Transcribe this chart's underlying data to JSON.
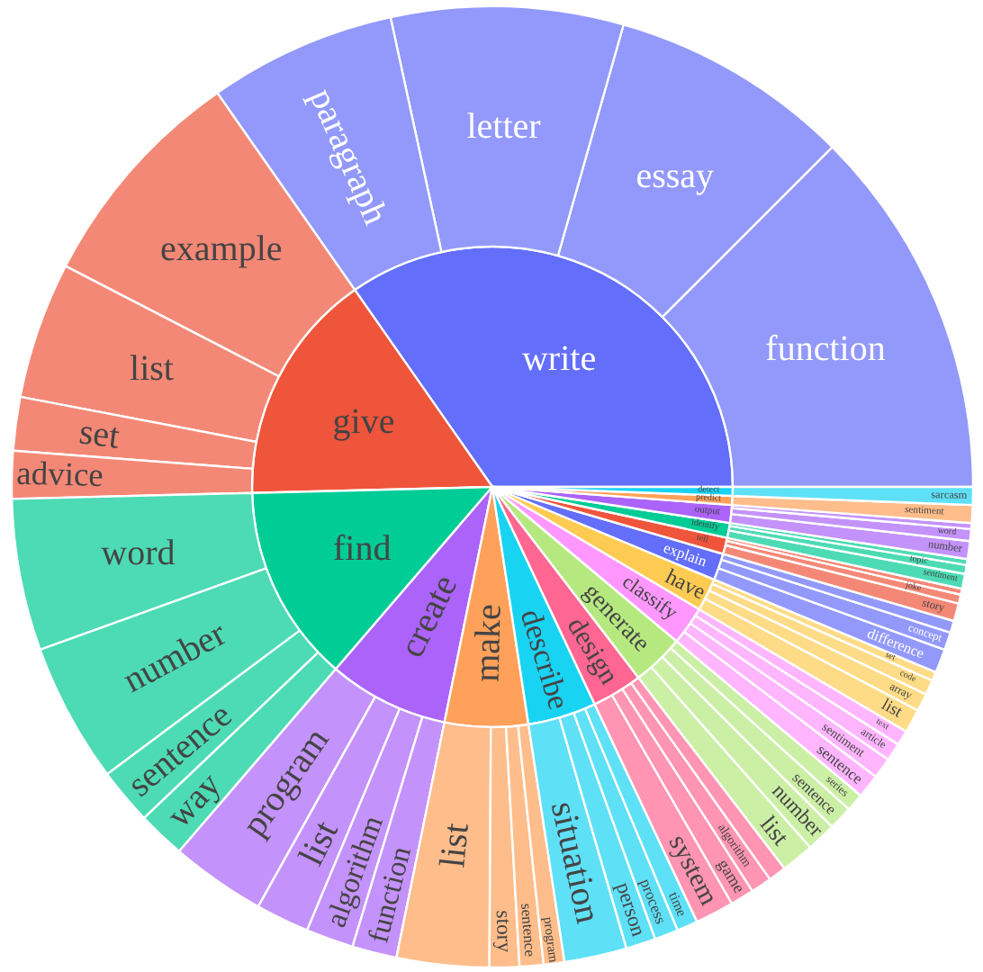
{
  "chart_data": [
    {
      "type": "pie",
      "categories": [
        "write",
        "give",
        "find",
        "create",
        "make",
        "describe",
        "design",
        "generate",
        "classify",
        "have",
        "explain",
        "tell",
        "identify",
        "output",
        "predict",
        "detect"
      ],
      "values": [
        34.7,
        15.7,
        13.3,
        8.1,
        5.6,
        4.6,
        3.4,
        3.5,
        2.6,
        2.2,
        1.8,
        1.1,
        1.0,
        1.2,
        0.6,
        0.6
      ],
      "colors": [
        "#636efa",
        "#ef553b",
        "#00cc96",
        "#ab63fa",
        "#ffa15a",
        "#19d3f3",
        "#ff6692",
        "#b6e880",
        "#ff97ff",
        "#fecb52",
        "#636efa",
        "#ef553b",
        "#00cc96",
        "#ab63fa",
        "#ffa15a",
        "#19d3f3"
      ]
    },
    {
      "type": "donut",
      "categories": [
        "function",
        "essay",
        "letter",
        "paragraph",
        "example",
        "list",
        "set",
        "advice",
        "word",
        "number",
        "sentence",
        "way",
        "program",
        "list",
        "algorithm",
        "function",
        "list",
        "story",
        "sentence",
        "program",
        "situation",
        "person",
        "process",
        "time",
        "system",
        "game",
        "algorithm",
        null,
        "list",
        "number",
        "sentence",
        "series",
        "sentence",
        "sentiment",
        "article",
        "text",
        "list",
        "array",
        "code",
        "set",
        "difference",
        "concept",
        null,
        "story",
        "joke",
        null,
        "sentiment",
        "topic",
        null,
        "number",
        "word",
        null,
        "sentiment",
        "sarcasm"
      ],
      "values": [
        12.5,
        8.1,
        7.8,
        6.3,
        7.7,
        4.6,
        1.8,
        1.6,
        5.1,
        4.7,
        1.9,
        1.6,
        3.2,
        1.8,
        1.6,
        1.5,
        3.1,
        1.0,
        0.8,
        0.7,
        2.1,
        1.0,
        0.8,
        0.7,
        1.3,
        0.8,
        0.7,
        0.6,
        1.1,
        1.0,
        0.8,
        0.6,
        0.8,
        0.7,
        0.6,
        0.5,
        0.8,
        0.6,
        0.5,
        0.3,
        0.8,
        0.6,
        0.4,
        0.6,
        0.3,
        0.2,
        0.5,
        0.3,
        0.2,
        0.6,
        0.4,
        0.2,
        0.6,
        0.6
      ],
      "colors": [
        "#9299fb",
        "#9299fb",
        "#9299fb",
        "#9299fb",
        "#f48876",
        "#f48876",
        "#f48876",
        "#f48876",
        "#4cdbb5",
        "#4cdbb5",
        "#4cdbb5",
        "#4cdbb5",
        "#c492fb",
        "#c492fb",
        "#c492fb",
        "#c492fb",
        "#ffbd8b",
        "#ffbd8b",
        "#ffbd8b",
        "#ffbd8b",
        "#5ee0f7",
        "#5ee0f7",
        "#5ee0f7",
        "#5ee0f7",
        "#ff94b3",
        "#ff94b3",
        "#ff94b3",
        "#ff94b3",
        "#ccefa6",
        "#ccefa6",
        "#ccefa6",
        "#ccefa6",
        "#ffb6ff",
        "#ffb6ff",
        "#ffb6ff",
        "#ffb6ff",
        "#fedb86",
        "#fedb86",
        "#fedb86",
        "#fedb86",
        "#9299fb",
        "#9299fb",
        "#9299fb",
        "#f48876",
        "#f48876",
        "#f48876",
        "#4cdbb5",
        "#4cdbb5",
        "#4cdbb5",
        "#c492fb",
        "#c492fb",
        "#c492fb",
        "#ffbd8b",
        "#5ee0f7"
      ]
    }
  ]
}
